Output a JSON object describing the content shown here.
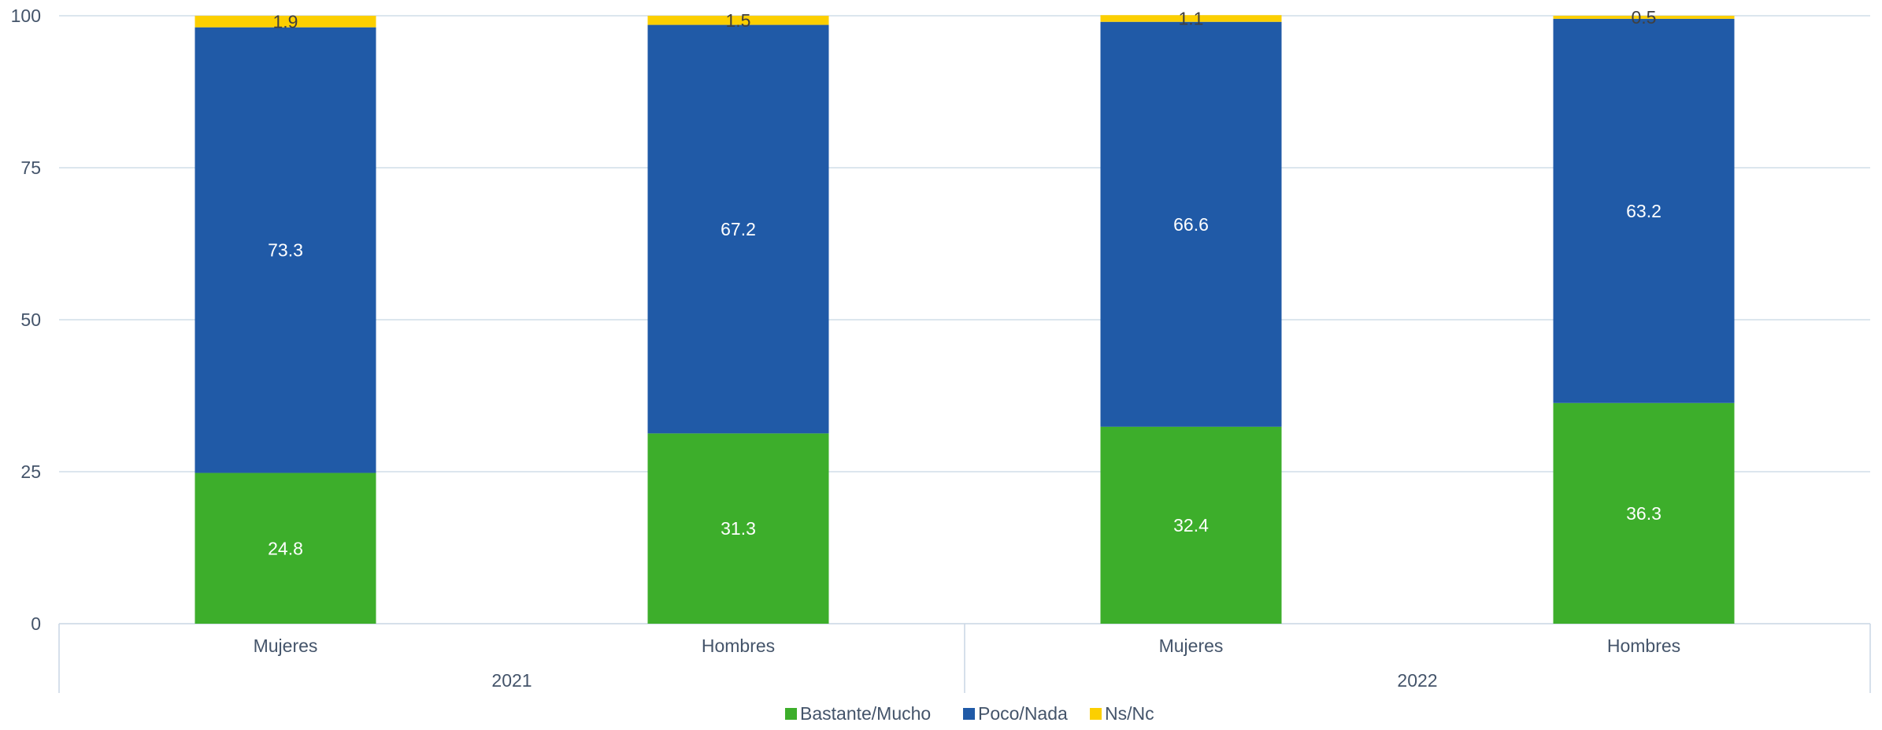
{
  "chart_data": {
    "type": "bar",
    "stacked": true,
    "title": "",
    "xlabel": "",
    "ylabel": "",
    "ylim": [
      0,
      100
    ],
    "yticks": [
      0,
      25,
      50,
      75,
      100
    ],
    "grid": true,
    "legend_position": "bottom",
    "categories": [
      "Mujeres",
      "Hombres",
      "Mujeres",
      "Hombres"
    ],
    "groups": [
      {
        "label": "2021",
        "span": 2
      },
      {
        "label": "2022",
        "span": 2
      }
    ],
    "series": [
      {
        "name": "Bastante/Mucho",
        "color": "#3dae2b",
        "label_color": "#ffffff",
        "values": [
          24.8,
          31.3,
          32.4,
          36.3
        ]
      },
      {
        "name": "Poco/Nada",
        "color": "#205aa7",
        "label_color": "#ffffff",
        "values": [
          73.3,
          67.2,
          66.6,
          63.2
        ]
      },
      {
        "name": "Ns/Nc",
        "color": "#fccf00",
        "label_color": "#404040",
        "values": [
          1.9,
          1.5,
          1.1,
          0.5
        ]
      }
    ]
  },
  "colors": {
    "axis_text": "#44546a",
    "gridline": "#d0dde8",
    "axis_line": "#c8d6e4"
  }
}
